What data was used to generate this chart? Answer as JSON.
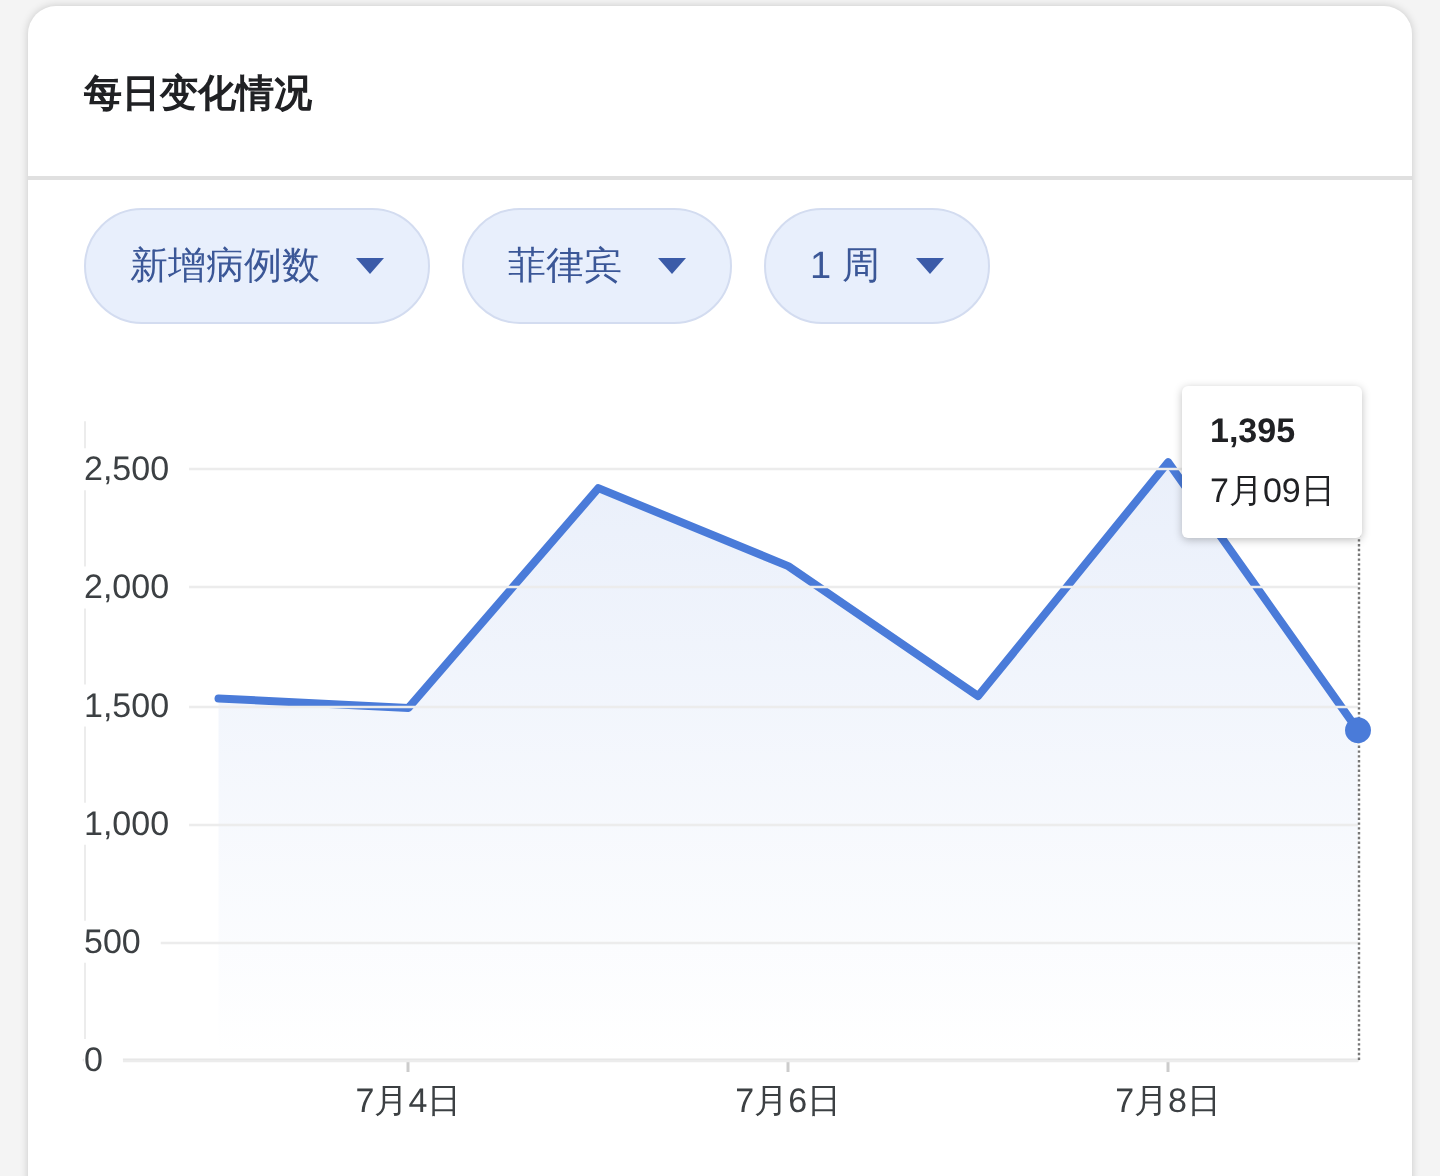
{
  "chart_data": {
    "type": "area",
    "title": "每日变化情况",
    "x": [
      "--07-03",
      "--07-04",
      "--07-05",
      "--07-06",
      "--07-07",
      "--07-08",
      "--07-09"
    ],
    "series": [
      {
        "color": "#4a7bd9",
        "values": [
          1530,
          1490,
          2420,
          2090,
          1540,
          2530,
          1395
        ]
      }
    ],
    "xlim": [
      "--07-02T07:00",
      "--07-09"
    ],
    "xticks": [
      {
        "value": "--07-04",
        "label": "7月4日"
      },
      {
        "value": "--07-06",
        "label": "7月6日"
      },
      {
        "value": "--07-08",
        "label": "7月8日"
      }
    ],
    "ylim": [
      0,
      2700
    ],
    "yticks": [
      0,
      500,
      {
        "value": 1000,
        "label": "1,000"
      },
      {
        "value": 1500,
        "label": "1,500"
      },
      {
        "value": 2000,
        "label": "2,000"
      },
      {
        "value": 2500,
        "label": "2,500"
      }
    ],
    "grid": "y",
    "ref_lines": [
      {
        "axis": "x",
        "value": "--07-09",
        "color": "#777777",
        "line_style": "dotted",
        "label": "1,395\n7月09日"
      }
    ],
    "annotations": [
      "新增病例数",
      "菲律宾",
      "1 周"
    ]
  }
}
